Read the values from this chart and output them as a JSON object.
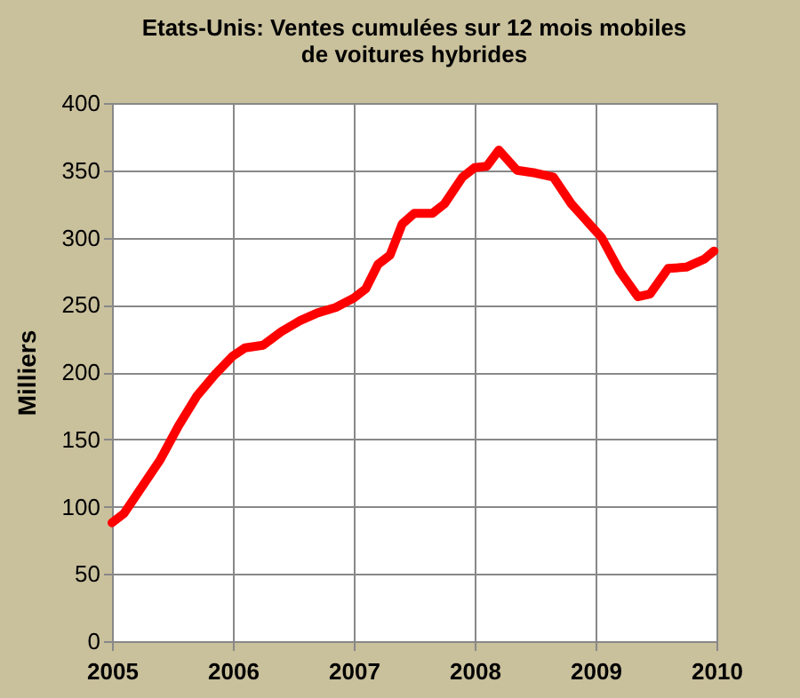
{
  "chart_data": {
    "type": "line",
    "title": "Etats-Unis: Ventes cumulées sur 12 mois mobiles de voitures hybrides",
    "ylabel": "Milliers",
    "x": [
      2005.0,
      2005.1,
      2005.25,
      2005.4,
      2005.55,
      2005.7,
      2005.85,
      2006.0,
      2006.1,
      2006.25,
      2006.4,
      2006.55,
      2006.7,
      2006.85,
      2007.0,
      2007.1,
      2007.2,
      2007.3,
      2007.4,
      2007.5,
      2007.65,
      2007.75,
      2007.9,
      2008.0,
      2008.1,
      2008.2,
      2008.35,
      2008.5,
      2008.65,
      2008.8,
      2008.9,
      2009.05,
      2009.2,
      2009.35,
      2009.45,
      2009.6,
      2009.75,
      2009.9,
      2009.98
    ],
    "series": [
      {
        "color": "#ff0000",
        "values": [
          88,
          95,
          115,
          135,
          160,
          182,
          198,
          212,
          218,
          220,
          230,
          238,
          244,
          248,
          255,
          262,
          280,
          287,
          310,
          318,
          318,
          325,
          345,
          352,
          353,
          365,
          350,
          348,
          345,
          325,
          315,
          300,
          275,
          256,
          258,
          277,
          278,
          284,
          290
        ]
      }
    ],
    "xlim": [
      2005,
      2010
    ],
    "xticks": [
      2005,
      2006,
      2007,
      2008,
      2009,
      2010
    ],
    "ylim": [
      0,
      400
    ],
    "yticks": [
      0,
      50,
      100,
      150,
      200,
      250,
      300,
      350,
      400
    ],
    "grid": true,
    "legend": false,
    "marker": "none",
    "line_style": "solid"
  }
}
